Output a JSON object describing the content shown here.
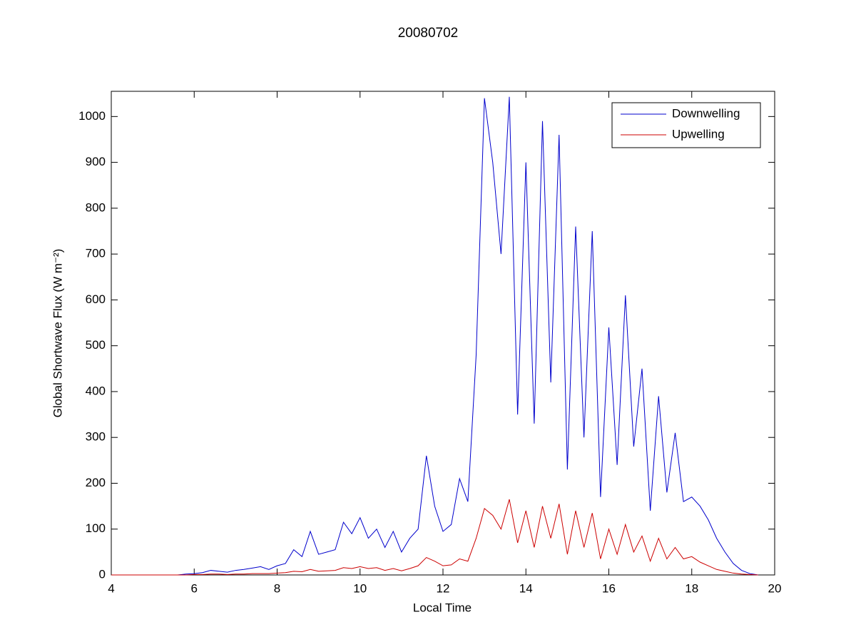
{
  "chart_data": {
    "type": "line",
    "title": "20080702",
    "x_label": "Local Time",
    "y_label": "Global Shortwave Flux (W m⁻²)",
    "x": [
      4,
      4.2,
      4.4,
      4.6,
      4.8,
      5,
      5.2,
      5.4,
      5.6,
      5.8,
      6,
      6.2,
      6.4,
      6.6,
      6.8,
      7,
      7.2,
      7.4,
      7.6,
      7.8,
      8,
      8.2,
      8.4,
      8.6,
      8.8,
      9,
      9.2,
      9.4,
      9.6,
      9.8,
      10,
      10.2,
      10.4,
      10.6,
      10.8,
      11,
      11.2,
      11.4,
      11.6,
      11.8,
      12,
      12.2,
      12.4,
      12.6,
      12.8,
      13,
      13.2,
      13.4,
      13.6,
      13.8,
      14,
      14.2,
      14.4,
      14.6,
      14.8,
      15,
      15.2,
      15.4,
      15.6,
      15.8,
      16,
      16.2,
      16.4,
      16.6,
      16.8,
      17,
      17.2,
      17.4,
      17.6,
      17.8,
      18,
      18.2,
      18.4,
      18.6,
      18.8,
      19,
      19.2,
      19.4,
      19.6
    ],
    "series": [
      {
        "name": "Downwelling",
        "color": "#0000cc",
        "values": [
          0,
          0,
          0,
          0,
          0,
          0,
          0,
          0,
          0,
          2,
          3,
          5,
          10,
          8,
          6,
          10,
          12,
          15,
          18,
          12,
          20,
          25,
          55,
          40,
          95,
          45,
          50,
          55,
          115,
          90,
          125,
          80,
          100,
          60,
          95,
          50,
          80,
          100,
          260,
          150,
          95,
          110,
          210,
          160,
          480,
          1040,
          900,
          700,
          1043,
          350,
          900,
          330,
          990,
          420,
          960,
          230,
          760,
          300,
          750,
          170,
          540,
          240,
          610,
          280,
          450,
          140,
          390,
          180,
          310,
          160,
          170,
          150,
          120,
          80,
          50,
          25,
          10,
          3,
          0
        ]
      },
      {
        "name": "Upwelling",
        "color": "#cc0000",
        "values": [
          0,
          0,
          0,
          0,
          0,
          0,
          0,
          0,
          0,
          0,
          1,
          1,
          2,
          2,
          1,
          2,
          2,
          3,
          3,
          3,
          4,
          5,
          8,
          7,
          12,
          8,
          9,
          10,
          16,
          14,
          18,
          14,
          16,
          10,
          14,
          9,
          14,
          20,
          38,
          30,
          20,
          22,
          35,
          30,
          80,
          145,
          130,
          100,
          165,
          70,
          140,
          60,
          150,
          80,
          155,
          45,
          140,
          60,
          135,
          35,
          100,
          45,
          110,
          50,
          85,
          30,
          80,
          35,
          60,
          35,
          40,
          28,
          20,
          12,
          8,
          4,
          2,
          1,
          0
        ]
      }
    ],
    "xlim": [
      4,
      20
    ],
    "xticks": [
      4,
      6,
      8,
      10,
      12,
      14,
      16,
      18,
      20
    ],
    "ylim": [
      0,
      1055
    ],
    "yticks": [
      0,
      100,
      200,
      300,
      400,
      500,
      600,
      700,
      800,
      900,
      1000
    ],
    "legend": "northeast",
    "grid": false
  }
}
